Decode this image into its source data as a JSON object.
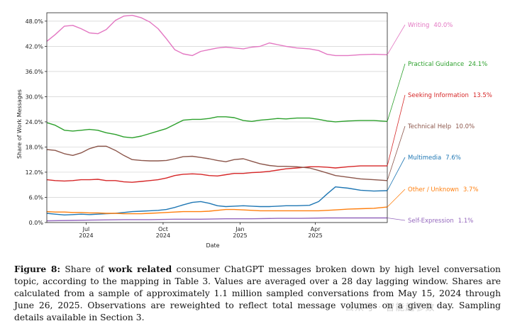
{
  "chart_data": {
    "type": "line",
    "ylabel": "Share of Work Messages",
    "xlabel": "Date",
    "x_range": [
      "2024-05-15",
      "2025-06-26"
    ],
    "ylim": [
      0,
      0.5
    ],
    "y_ticks": [
      "0.0%",
      "6.0%",
      "12.0%",
      "18.0%",
      "24.0%",
      "30.0%",
      "36.0%",
      "42.0%",
      "48.0%"
    ],
    "y_tick_values": [
      0,
      0.06,
      0.12,
      0.18,
      0.24,
      0.3,
      0.36,
      0.42,
      0.48
    ],
    "x_ticks": [
      {
        "date": "2024-07-01",
        "month": "Jul",
        "year": "2024"
      },
      {
        "date": "2024-10-01",
        "month": "Oct",
        "year": "2024"
      },
      {
        "date": "2025-01-01",
        "month": "Jan",
        "year": "2025"
      },
      {
        "date": "2025-04-01",
        "month": "Apr",
        "year": "2025"
      }
    ],
    "grid": "horizontal",
    "legend_placement": "right",
    "series": [
      {
        "name": "Writing",
        "final_label": "40.0%",
        "color": "#e377c2",
        "points": [
          [
            "2024-05-15",
            0.432
          ],
          [
            "2024-05-25",
            0.448
          ],
          [
            "2024-06-05",
            0.468
          ],
          [
            "2024-06-15",
            0.47
          ],
          [
            "2024-06-25",
            0.462
          ],
          [
            "2024-07-05",
            0.452
          ],
          [
            "2024-07-15",
            0.45
          ],
          [
            "2024-07-25",
            0.46
          ],
          [
            "2024-08-05",
            0.482
          ],
          [
            "2024-08-15",
            0.492
          ],
          [
            "2024-08-25",
            0.494
          ],
          [
            "2024-09-05",
            0.488
          ],
          [
            "2024-09-15",
            0.478
          ],
          [
            "2024-09-25",
            0.462
          ],
          [
            "2024-10-05",
            0.438
          ],
          [
            "2024-10-15",
            0.412
          ],
          [
            "2024-10-25",
            0.402
          ],
          [
            "2024-11-05",
            0.398
          ],
          [
            "2024-11-15",
            0.408
          ],
          [
            "2024-11-25",
            0.412
          ],
          [
            "2024-12-05",
            0.416
          ],
          [
            "2024-12-15",
            0.418
          ],
          [
            "2024-12-25",
            0.416
          ],
          [
            "2025-01-05",
            0.414
          ],
          [
            "2025-01-15",
            0.418
          ],
          [
            "2025-01-25",
            0.42
          ],
          [
            "2025-02-05",
            0.428
          ],
          [
            "2025-02-15",
            0.424
          ],
          [
            "2025-02-25",
            0.42
          ],
          [
            "2025-03-10",
            0.416
          ],
          [
            "2025-03-25",
            0.414
          ],
          [
            "2025-04-05",
            0.41
          ],
          [
            "2025-04-15",
            0.401
          ],
          [
            "2025-04-25",
            0.398
          ],
          [
            "2025-05-10",
            0.398
          ],
          [
            "2025-05-25",
            0.4
          ],
          [
            "2025-06-10",
            0.401
          ],
          [
            "2025-06-26",
            0.4
          ]
        ]
      },
      {
        "name": "Practical Guidance",
        "final_label": "24.1%",
        "color": "#2ca02c",
        "points": [
          [
            "2024-05-15",
            0.238
          ],
          [
            "2024-05-25",
            0.232
          ],
          [
            "2024-06-05",
            0.22
          ],
          [
            "2024-06-15",
            0.218
          ],
          [
            "2024-06-25",
            0.22
          ],
          [
            "2024-07-05",
            0.222
          ],
          [
            "2024-07-15",
            0.22
          ],
          [
            "2024-07-25",
            0.214
          ],
          [
            "2024-08-05",
            0.21
          ],
          [
            "2024-08-15",
            0.204
          ],
          [
            "2024-08-25",
            0.202
          ],
          [
            "2024-09-05",
            0.206
          ],
          [
            "2024-09-15",
            0.212
          ],
          [
            "2024-09-25",
            0.218
          ],
          [
            "2024-10-05",
            0.224
          ],
          [
            "2024-10-15",
            0.234
          ],
          [
            "2024-10-25",
            0.244
          ],
          [
            "2024-11-05",
            0.246
          ],
          [
            "2024-11-15",
            0.246
          ],
          [
            "2024-11-25",
            0.248
          ],
          [
            "2024-12-05",
            0.252
          ],
          [
            "2024-12-15",
            0.252
          ],
          [
            "2024-12-25",
            0.25
          ],
          [
            "2025-01-05",
            0.243
          ],
          [
            "2025-01-15",
            0.241
          ],
          [
            "2025-01-25",
            0.244
          ],
          [
            "2025-02-05",
            0.246
          ],
          [
            "2025-02-15",
            0.248
          ],
          [
            "2025-02-25",
            0.247
          ],
          [
            "2025-03-10",
            0.249
          ],
          [
            "2025-03-25",
            0.249
          ],
          [
            "2025-04-05",
            0.246
          ],
          [
            "2025-04-15",
            0.242
          ],
          [
            "2025-04-25",
            0.24
          ],
          [
            "2025-05-10",
            0.242
          ],
          [
            "2025-05-25",
            0.243
          ],
          [
            "2025-06-10",
            0.243
          ],
          [
            "2025-06-26",
            0.241
          ]
        ]
      },
      {
        "name": "Seeking Information",
        "final_label": "13.5%",
        "color": "#d62728",
        "points": [
          [
            "2024-05-15",
            0.102
          ],
          [
            "2024-05-25",
            0.1
          ],
          [
            "2024-06-05",
            0.099
          ],
          [
            "2024-06-15",
            0.1
          ],
          [
            "2024-06-25",
            0.102
          ],
          [
            "2024-07-05",
            0.102
          ],
          [
            "2024-07-15",
            0.103
          ],
          [
            "2024-07-25",
            0.1
          ],
          [
            "2024-08-05",
            0.1
          ],
          [
            "2024-08-15",
            0.097
          ],
          [
            "2024-08-25",
            0.096
          ],
          [
            "2024-09-05",
            0.098
          ],
          [
            "2024-09-15",
            0.1
          ],
          [
            "2024-09-25",
            0.102
          ],
          [
            "2024-10-05",
            0.106
          ],
          [
            "2024-10-15",
            0.112
          ],
          [
            "2024-10-25",
            0.115
          ],
          [
            "2024-11-05",
            0.116
          ],
          [
            "2024-11-15",
            0.115
          ],
          [
            "2024-11-25",
            0.112
          ],
          [
            "2024-12-05",
            0.111
          ],
          [
            "2024-12-15",
            0.114
          ],
          [
            "2024-12-25",
            0.117
          ],
          [
            "2025-01-05",
            0.117
          ],
          [
            "2025-01-15",
            0.119
          ],
          [
            "2025-01-25",
            0.12
          ],
          [
            "2025-02-05",
            0.122
          ],
          [
            "2025-02-15",
            0.125
          ],
          [
            "2025-02-25",
            0.128
          ],
          [
            "2025-03-10",
            0.13
          ],
          [
            "2025-03-25",
            0.133
          ],
          [
            "2025-04-05",
            0.133
          ],
          [
            "2025-04-15",
            0.132
          ],
          [
            "2025-04-25",
            0.13
          ],
          [
            "2025-05-10",
            0.133
          ],
          [
            "2025-05-25",
            0.135
          ],
          [
            "2025-06-10",
            0.135
          ],
          [
            "2025-06-26",
            0.135
          ]
        ]
      },
      {
        "name": "Technical Help",
        "final_label": "10.0%",
        "color": "#8c564b",
        "points": [
          [
            "2024-05-15",
            0.174
          ],
          [
            "2024-05-25",
            0.172
          ],
          [
            "2024-06-05",
            0.164
          ],
          [
            "2024-06-15",
            0.16
          ],
          [
            "2024-06-25",
            0.166
          ],
          [
            "2024-07-05",
            0.176
          ],
          [
            "2024-07-15",
            0.182
          ],
          [
            "2024-07-25",
            0.182
          ],
          [
            "2024-08-05",
            0.172
          ],
          [
            "2024-08-15",
            0.16
          ],
          [
            "2024-08-25",
            0.15
          ],
          [
            "2024-09-05",
            0.148
          ],
          [
            "2024-09-15",
            0.147
          ],
          [
            "2024-09-25",
            0.147
          ],
          [
            "2024-10-05",
            0.148
          ],
          [
            "2024-10-15",
            0.152
          ],
          [
            "2024-10-25",
            0.157
          ],
          [
            "2024-11-05",
            0.158
          ],
          [
            "2024-11-15",
            0.155
          ],
          [
            "2024-11-25",
            0.152
          ],
          [
            "2024-12-05",
            0.148
          ],
          [
            "2024-12-15",
            0.145
          ],
          [
            "2024-12-25",
            0.15
          ],
          [
            "2025-01-05",
            0.152
          ],
          [
            "2025-01-15",
            0.146
          ],
          [
            "2025-01-25",
            0.14
          ],
          [
            "2025-02-05",
            0.136
          ],
          [
            "2025-02-15",
            0.134
          ],
          [
            "2025-02-25",
            0.134
          ],
          [
            "2025-03-10",
            0.133
          ],
          [
            "2025-03-25",
            0.13
          ],
          [
            "2025-04-05",
            0.124
          ],
          [
            "2025-04-15",
            0.118
          ],
          [
            "2025-04-25",
            0.112
          ],
          [
            "2025-05-10",
            0.108
          ],
          [
            "2025-05-25",
            0.104
          ],
          [
            "2025-06-10",
            0.102
          ],
          [
            "2025-06-26",
            0.1
          ]
        ]
      },
      {
        "name": "Multimedia",
        "final_label": "7.6%",
        "color": "#1f77b4",
        "points": [
          [
            "2024-05-15",
            0.022
          ],
          [
            "2024-05-25",
            0.02
          ],
          [
            "2024-06-05",
            0.018
          ],
          [
            "2024-06-15",
            0.019
          ],
          [
            "2024-06-25",
            0.02
          ],
          [
            "2024-07-05",
            0.019
          ],
          [
            "2024-07-15",
            0.02
          ],
          [
            "2024-07-25",
            0.021
          ],
          [
            "2024-08-05",
            0.022
          ],
          [
            "2024-08-15",
            0.024
          ],
          [
            "2024-08-25",
            0.026
          ],
          [
            "2024-09-05",
            0.027
          ],
          [
            "2024-09-15",
            0.028
          ],
          [
            "2024-09-25",
            0.029
          ],
          [
            "2024-10-05",
            0.031
          ],
          [
            "2024-10-15",
            0.036
          ],
          [
            "2024-10-25",
            0.042
          ],
          [
            "2024-11-05",
            0.048
          ],
          [
            "2024-11-15",
            0.05
          ],
          [
            "2024-11-25",
            0.046
          ],
          [
            "2024-12-05",
            0.04
          ],
          [
            "2024-12-15",
            0.038
          ],
          [
            "2024-12-25",
            0.039
          ],
          [
            "2025-01-05",
            0.04
          ],
          [
            "2025-01-15",
            0.039
          ],
          [
            "2025-01-25",
            0.038
          ],
          [
            "2025-02-05",
            0.038
          ],
          [
            "2025-02-15",
            0.039
          ],
          [
            "2025-02-25",
            0.04
          ],
          [
            "2025-03-10",
            0.04
          ],
          [
            "2025-03-25",
            0.041
          ],
          [
            "2025-04-05",
            0.05
          ],
          [
            "2025-04-15",
            0.068
          ],
          [
            "2025-04-25",
            0.085
          ],
          [
            "2025-05-10",
            0.082
          ],
          [
            "2025-05-25",
            0.077
          ],
          [
            "2025-06-10",
            0.075
          ],
          [
            "2025-06-26",
            0.076
          ]
        ]
      },
      {
        "name": "Other / Unknown",
        "final_label": "3.7%",
        "color": "#ff7f0e",
        "points": [
          [
            "2024-05-15",
            0.026
          ],
          [
            "2024-05-25",
            0.025
          ],
          [
            "2024-06-05",
            0.025
          ],
          [
            "2024-06-15",
            0.024
          ],
          [
            "2024-06-25",
            0.024
          ],
          [
            "2024-07-05",
            0.023
          ],
          [
            "2024-07-15",
            0.023
          ],
          [
            "2024-07-25",
            0.022
          ],
          [
            "2024-08-05",
            0.022
          ],
          [
            "2024-08-15",
            0.021
          ],
          [
            "2024-08-25",
            0.021
          ],
          [
            "2024-09-05",
            0.021
          ],
          [
            "2024-09-15",
            0.022
          ],
          [
            "2024-09-25",
            0.023
          ],
          [
            "2024-10-05",
            0.024
          ],
          [
            "2024-10-15",
            0.025
          ],
          [
            "2024-10-25",
            0.026
          ],
          [
            "2024-11-05",
            0.026
          ],
          [
            "2024-11-15",
            0.026
          ],
          [
            "2024-11-25",
            0.027
          ],
          [
            "2024-12-05",
            0.029
          ],
          [
            "2024-12-15",
            0.031
          ],
          [
            "2024-12-25",
            0.031
          ],
          [
            "2025-01-05",
            0.03
          ],
          [
            "2025-01-15",
            0.029
          ],
          [
            "2025-01-25",
            0.028
          ],
          [
            "2025-02-05",
            0.028
          ],
          [
            "2025-02-15",
            0.028
          ],
          [
            "2025-02-25",
            0.028
          ],
          [
            "2025-03-10",
            0.028
          ],
          [
            "2025-03-25",
            0.028
          ],
          [
            "2025-04-05",
            0.028
          ],
          [
            "2025-04-15",
            0.029
          ],
          [
            "2025-04-25",
            0.03
          ],
          [
            "2025-05-10",
            0.032
          ],
          [
            "2025-05-25",
            0.033
          ],
          [
            "2025-06-10",
            0.034
          ],
          [
            "2025-06-26",
            0.037
          ]
        ]
      },
      {
        "name": "Self-Expression",
        "final_label": "1.1%",
        "color": "#9467bd",
        "points": [
          [
            "2024-05-15",
            0.004
          ],
          [
            "2024-06-15",
            0.005
          ],
          [
            "2024-07-15",
            0.006
          ],
          [
            "2024-08-15",
            0.007
          ],
          [
            "2024-09-15",
            0.007
          ],
          [
            "2024-10-15",
            0.008
          ],
          [
            "2024-11-15",
            0.008
          ],
          [
            "2024-12-15",
            0.009
          ],
          [
            "2025-01-15",
            0.009
          ],
          [
            "2025-02-15",
            0.01
          ],
          [
            "2025-03-15",
            0.01
          ],
          [
            "2025-04-15",
            0.011
          ],
          [
            "2025-05-15",
            0.011
          ],
          [
            "2025-06-26",
            0.011
          ]
        ]
      }
    ]
  },
  "caption": {
    "figure_label": "Figure 8:",
    "text_1": " Share of ",
    "bold_phrase": "work related",
    "text_2": " consumer ChatGPT messages broken down by high level conversation topic, according to the mapping in Table 3. Values are averaged over a 28 day lagging window. Shares are calculated from a sample of approximately 1.1 million sampled conversations from May 15, 2024 through June 26, 2025. Observations are reweighted to reflect total message volumes on a given day. Sampling details available in Section 3."
  },
  "watermark": "公众号 · 智能超参数"
}
